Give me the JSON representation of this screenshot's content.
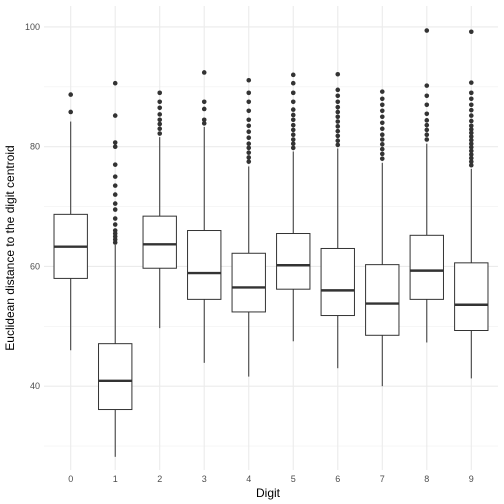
{
  "chart_data": {
    "type": "boxplot",
    "xlabel": "Digit",
    "ylabel": "Euclidean distance to the digit centroid",
    "ylim": [
      26.0,
      103.5
    ],
    "yticks": [
      40,
      60,
      80,
      100
    ],
    "grid": true,
    "categories": [
      "0",
      "1",
      "2",
      "3",
      "4",
      "5",
      "6",
      "7",
      "8",
      "9"
    ],
    "boxes": [
      {
        "label": "0",
        "whisker_low": 46.0,
        "q1": 58.0,
        "median": 63.3,
        "q3": 68.7,
        "whisker_high": 84.2,
        "outliers": [
          85.8,
          88.7
        ]
      },
      {
        "label": "1",
        "whisker_low": 28.2,
        "q1": 36.1,
        "median": 40.9,
        "q3": 47.1,
        "whisker_high": 63.6,
        "outliers": [
          64.0,
          64.5,
          65.0,
          65.5,
          66.0,
          67.0,
          68.0,
          69.5,
          70.5,
          72.0,
          73.5,
          75.0,
          77.0,
          80.0,
          80.7,
          85.2,
          90.6
        ]
      },
      {
        "label": "2",
        "whisker_low": 49.7,
        "q1": 59.7,
        "median": 63.7,
        "q3": 68.4,
        "whisker_high": 81.6,
        "outliers": [
          82.2,
          83.0,
          83.8,
          84.5,
          85.4,
          86.5,
          87.5,
          89.0
        ]
      },
      {
        "label": "3",
        "whisker_low": 43.9,
        "q1": 54.5,
        "median": 58.9,
        "q3": 66.0,
        "whisker_high": 83.3,
        "outliers": [
          83.9,
          84.5,
          86.3,
          87.5,
          92.4
        ]
      },
      {
        "label": "4",
        "whisker_low": 41.6,
        "q1": 52.4,
        "median": 56.5,
        "q3": 62.2,
        "whisker_high": 76.7,
        "outliers": [
          77.5,
          78.2,
          79.0,
          79.8,
          80.5,
          81.5,
          82.5,
          83.5,
          84.5,
          86.0,
          87.5,
          89.0,
          91.1
        ]
      },
      {
        "label": "5",
        "whisker_low": 47.5,
        "q1": 56.2,
        "median": 60.2,
        "q3": 65.5,
        "whisker_high": 79.2,
        "outliers": [
          79.8,
          80.5,
          81.2,
          82.0,
          82.8,
          83.6,
          84.5,
          85.3,
          86.2,
          87.5,
          89.0,
          90.6,
          92.0
        ]
      },
      {
        "label": "6",
        "whisker_low": 43.0,
        "q1": 51.8,
        "median": 56.0,
        "q3": 63.0,
        "whisker_high": 79.7,
        "outliers": [
          80.3,
          81.0,
          81.8,
          82.6,
          83.4,
          84.2,
          85.0,
          85.8,
          86.6,
          87.5,
          88.5,
          89.5,
          92.1
        ]
      },
      {
        "label": "7",
        "whisker_low": 40.0,
        "q1": 48.5,
        "median": 53.8,
        "q3": 60.3,
        "whisker_high": 77.3,
        "outliers": [
          78.0,
          78.8,
          79.6,
          80.4,
          81.2,
          82.0,
          83.0,
          84.0,
          85.0,
          86.0,
          87.0,
          88.0,
          89.2
        ]
      },
      {
        "label": "8",
        "whisker_low": 47.3,
        "q1": 54.5,
        "median": 59.3,
        "q3": 65.2,
        "whisker_high": 80.5,
        "outliers": [
          81.2,
          82.0,
          82.8,
          83.6,
          84.4,
          85.5,
          87.0,
          88.5,
          90.2,
          99.4
        ]
      },
      {
        "label": "9",
        "whisker_low": 41.3,
        "q1": 49.3,
        "median": 53.6,
        "q3": 60.6,
        "whisker_high": 76.3,
        "outliers": [
          76.9,
          77.5,
          78.1,
          78.7,
          79.3,
          79.9,
          80.5,
          81.1,
          81.7,
          82.3,
          82.9,
          83.5,
          84.3,
          85.2,
          86.1,
          87.0,
          88.0,
          89.0,
          90.7,
          99.2
        ]
      }
    ]
  }
}
